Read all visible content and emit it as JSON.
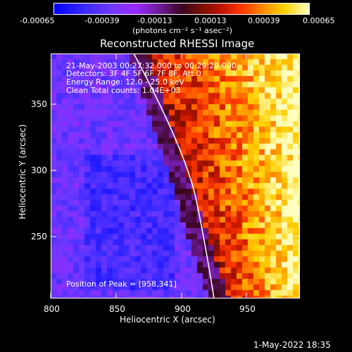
{
  "colorbar": {
    "tick_labels": [
      "-0.00065",
      "-0.00039",
      "-0.00013",
      "0.00013",
      "0.00039",
      "0.00065"
    ],
    "units_label": "(photons cm⁻² s⁻¹ asec⁻²)"
  },
  "title": "Reconstructed RHESSI Image",
  "info": {
    "line1": "21-May-2003 00:27:32.000 to 00:29:28.000",
    "line2": "Detectors: 3F 4F 5F 6F 7F 8F, Att 0",
    "line3": "Energy Range: 12.0 - 25.0 keV",
    "line4": "Clean     Total counts: 1.04E+03",
    "peak": "Position of Peak = [958,341]"
  },
  "axes": {
    "xlabel": "Heliocentric X (arcsec)",
    "ylabel": "Heliocentric Y (arcsec)",
    "xticks": [
      "800",
      "850",
      "900",
      "950"
    ],
    "yticks": [
      "350",
      "300",
      "250"
    ]
  },
  "timestamp": "1-May-2022 18:35",
  "chart_data": {
    "type": "heatmap",
    "title": "Reconstructed RHESSI Image",
    "xlabel": "Heliocentric X (arcsec)",
    "ylabel": "Heliocentric Y (arcsec)",
    "xlim": [
      800,
      990
    ],
    "ylim": [
      202,
      388
    ],
    "colorbar_range": [
      -0.00065,
      0.00065
    ],
    "peak_position": [
      958,
      341
    ],
    "limb_curve": {
      "x": [
        864,
        880,
        895,
        908,
        918,
        925
      ],
      "y": [
        388,
        350,
        310,
        270,
        230,
        202
      ]
    }
  },
  "colors": {
    "background": "#000000",
    "foreground": "#ffffff",
    "limb": "#ffffff"
  }
}
